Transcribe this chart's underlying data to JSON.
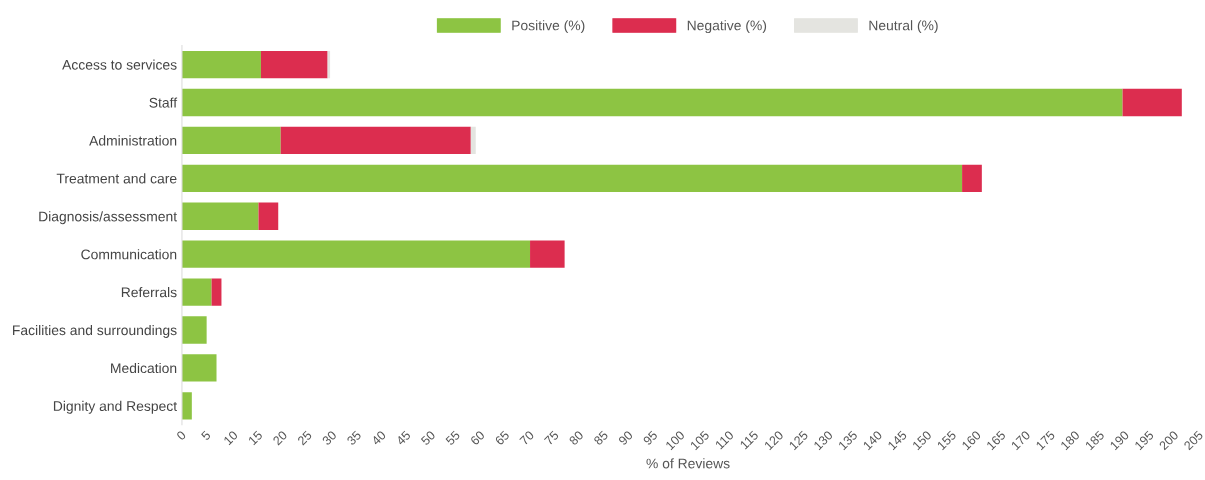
{
  "chart_data": {
    "type": "bar",
    "orientation": "horizontal",
    "stacked": true,
    "xlabel": "% of Reviews",
    "categories": [
      "Access to services",
      "Staff",
      "Administration",
      "Treatment and care",
      "Diagnosis/assessment",
      "Communication",
      "Referrals",
      "Facilities and surroundings",
      "Medication",
      "Dignity and Respect"
    ],
    "series": [
      {
        "name": "Positive (%)",
        "color": "#8dc443",
        "values": [
          16,
          190.5,
          20,
          158,
          15.5,
          70.5,
          6,
          5,
          7,
          2
        ]
      },
      {
        "name": "Negative (%)",
        "color": "#dc2d4f",
        "values": [
          13.5,
          12,
          38.5,
          4,
          4,
          7,
          2,
          0,
          0,
          0
        ]
      },
      {
        "name": "Neutral (%)",
        "color": "#e4e4e0",
        "values": [
          0.5,
          0,
          1,
          0,
          0,
          0,
          0,
          0,
          0,
          0
        ]
      }
    ],
    "xlim": [
      0,
      205
    ],
    "xticks": [
      0,
      5,
      10,
      15,
      20,
      25,
      30,
      35,
      40,
      45,
      50,
      55,
      60,
      65,
      70,
      75,
      80,
      85,
      90,
      95,
      100,
      105,
      110,
      115,
      120,
      125,
      130,
      135,
      140,
      145,
      150,
      155,
      160,
      165,
      170,
      175,
      180,
      185,
      190,
      195,
      200,
      205
    ],
    "grid": false,
    "legend": "top"
  }
}
